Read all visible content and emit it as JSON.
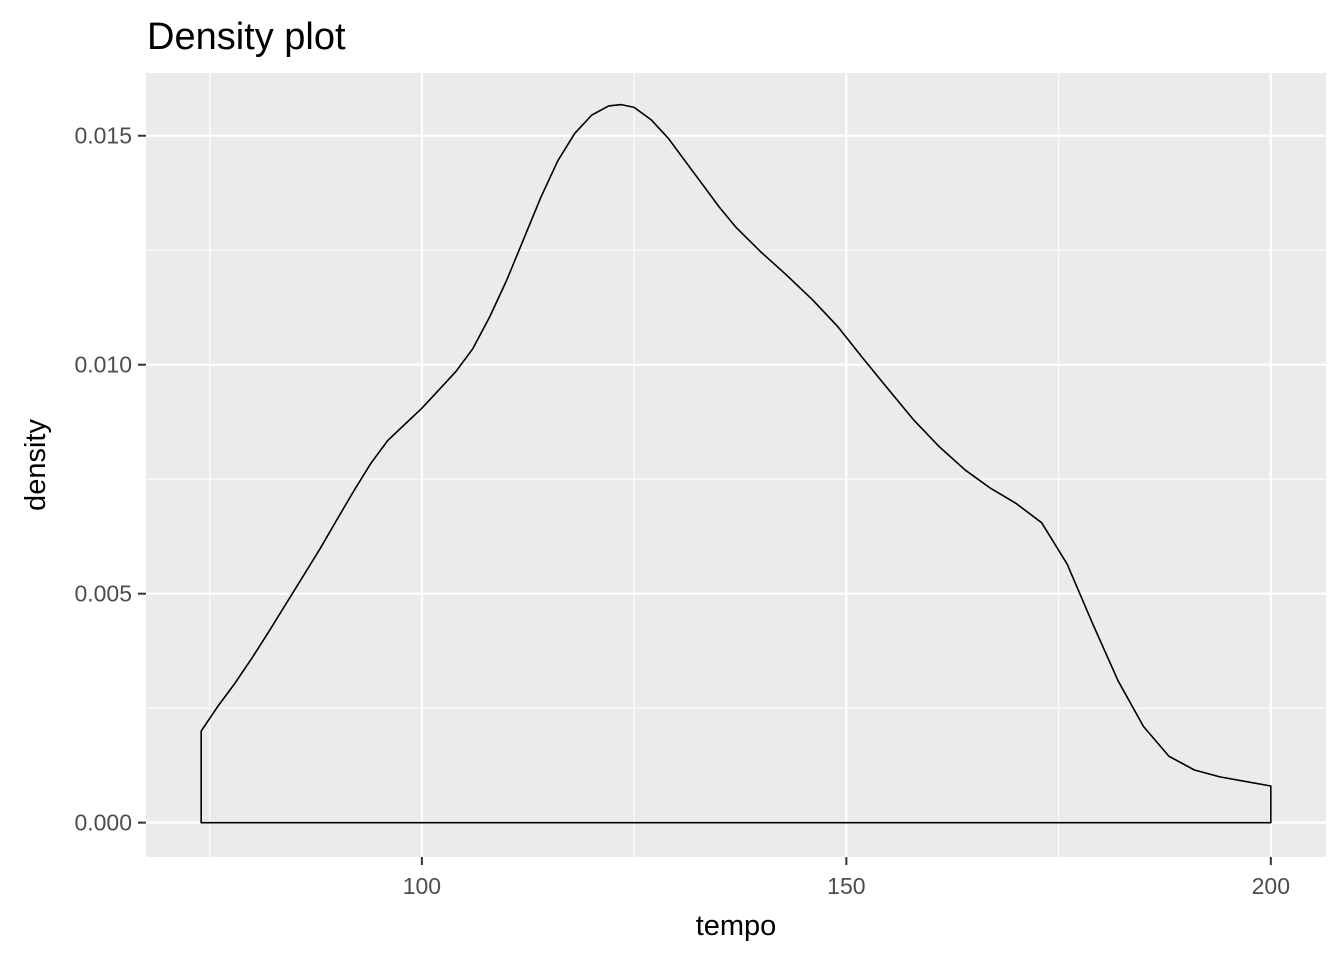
{
  "chart_data": {
    "type": "area",
    "title": "Density plot",
    "xlabel": "tempo",
    "ylabel": "density",
    "xlim": [
      67.5,
      206.5
    ],
    "ylim": [
      -0.00075,
      0.01637
    ],
    "x_ticks": [
      100,
      150,
      200
    ],
    "x_tick_labels": [
      "100",
      "150",
      "200"
    ],
    "x_minor_ticks": [
      75,
      125,
      175
    ],
    "y_ticks": [
      0.0,
      0.005,
      0.01,
      0.015
    ],
    "y_tick_labels": [
      "0.000",
      "0.005",
      "0.010",
      "0.015"
    ],
    "y_minor_ticks": [
      0.0025,
      0.0075,
      0.0125
    ],
    "grid": true,
    "legend": "none",
    "fill": "none",
    "outline_color": "#000000",
    "panel_background": "#ebebeb",
    "grid_color": "#ffffff",
    "series": [
      {
        "x": [
          74,
          74,
          76,
          78,
          80,
          82,
          84,
          86,
          88,
          90,
          92,
          94,
          96,
          98,
          100,
          102,
          104,
          106,
          108,
          110,
          112,
          114,
          116,
          118,
          120,
          122,
          123.5,
          125,
          127,
          129,
          131,
          133,
          135,
          137,
          140,
          143,
          146,
          149,
          152,
          155,
          158,
          161,
          164,
          167,
          170,
          173,
          176,
          179,
          182,
          185,
          188,
          191,
          194,
          197,
          200,
          200
        ],
        "y": [
          0,
          0.002,
          0.00255,
          0.00305,
          0.0036,
          0.00418,
          0.00478,
          0.00538,
          0.00598,
          0.00662,
          0.00725,
          0.00785,
          0.00835,
          0.0087,
          0.00905,
          0.00945,
          0.00985,
          0.01035,
          0.01105,
          0.01185,
          0.01275,
          0.01365,
          0.01445,
          0.01505,
          0.01545,
          0.01565,
          0.01568,
          0.01562,
          0.01535,
          0.01495,
          0.01445,
          0.01395,
          0.01345,
          0.013,
          0.01245,
          0.01195,
          0.01142,
          0.01083,
          0.01013,
          0.00945,
          0.00878,
          0.0082,
          0.0077,
          0.0073,
          0.00697,
          0.00655,
          0.00565,
          0.00435,
          0.0031,
          0.0021,
          0.00145,
          0.00115,
          0.001,
          0.0009,
          0.0008,
          0
        ]
      }
    ]
  }
}
